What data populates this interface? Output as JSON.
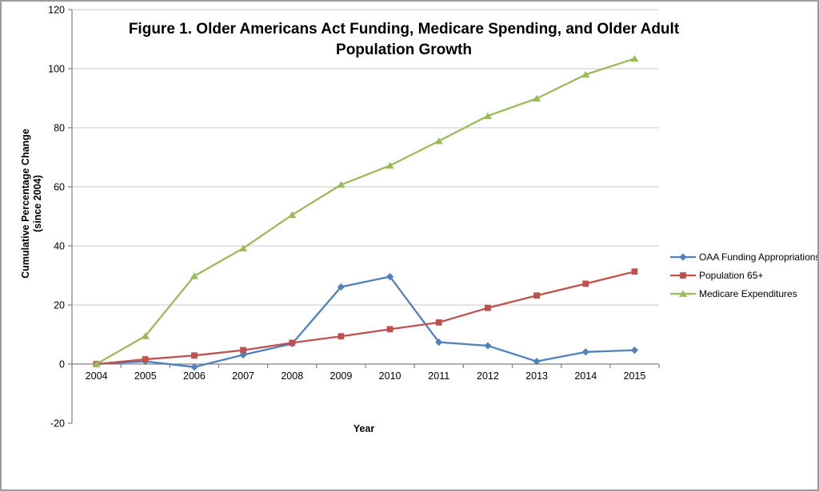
{
  "figure": {
    "title_line1": "Figure 1. Older Americans Act Funding, Medicare Spending, and Older Adult",
    "title_line2": "Population Growth",
    "y_axis_title_line1": "Cumulative Percentage Change",
    "y_axis_title_line2": "(since 2004)",
    "x_axis_title": "Year"
  },
  "chart_data": {
    "type": "line",
    "title": "Figure 1. Older Americans Act Funding, Medicare Spending, and Older Adult Population Growth",
    "xlabel": "Year",
    "ylabel": "Cumulative Percentage Change (since 2004)",
    "ylim": [
      -20,
      120
    ],
    "y_ticks": [
      -20,
      0,
      20,
      40,
      60,
      80,
      100,
      120
    ],
    "grid": true,
    "legend_position": "right",
    "categories": [
      "2004",
      "2005",
      "2006",
      "2007",
      "2008",
      "2009",
      "2010",
      "2011",
      "2012",
      "2013",
      "2014",
      "2015"
    ],
    "series": [
      {
        "name": "OAA Funding Appropriations",
        "color": "#4F81BD",
        "marker": "diamond",
        "values": [
          0,
          0.9,
          -1.0,
          3.1,
          6.9,
          26.1,
          29.6,
          7.4,
          6.2,
          0.9,
          4.1,
          4.7
        ]
      },
      {
        "name": "Population 65+",
        "color": "#C0504D",
        "marker": "square",
        "values": [
          0,
          1.6,
          2.9,
          4.7,
          7.2,
          9.4,
          11.8,
          14.1,
          19.0,
          23.2,
          27.2,
          31.3
        ]
      },
      {
        "name": "Medicare Expenditures",
        "color": "#9BBB59",
        "marker": "triangle",
        "values": [
          0,
          9.5,
          29.8,
          39.2,
          50.5,
          60.7,
          67.2,
          75.5,
          84.0,
          89.9,
          98.0,
          103.4
        ]
      }
    ]
  },
  "colors": {
    "gridline": "#C9C9C9",
    "axis": "#808080",
    "text": "#000000",
    "frame_border": "#9C9C9C",
    "background": "#FFFFFF"
  }
}
